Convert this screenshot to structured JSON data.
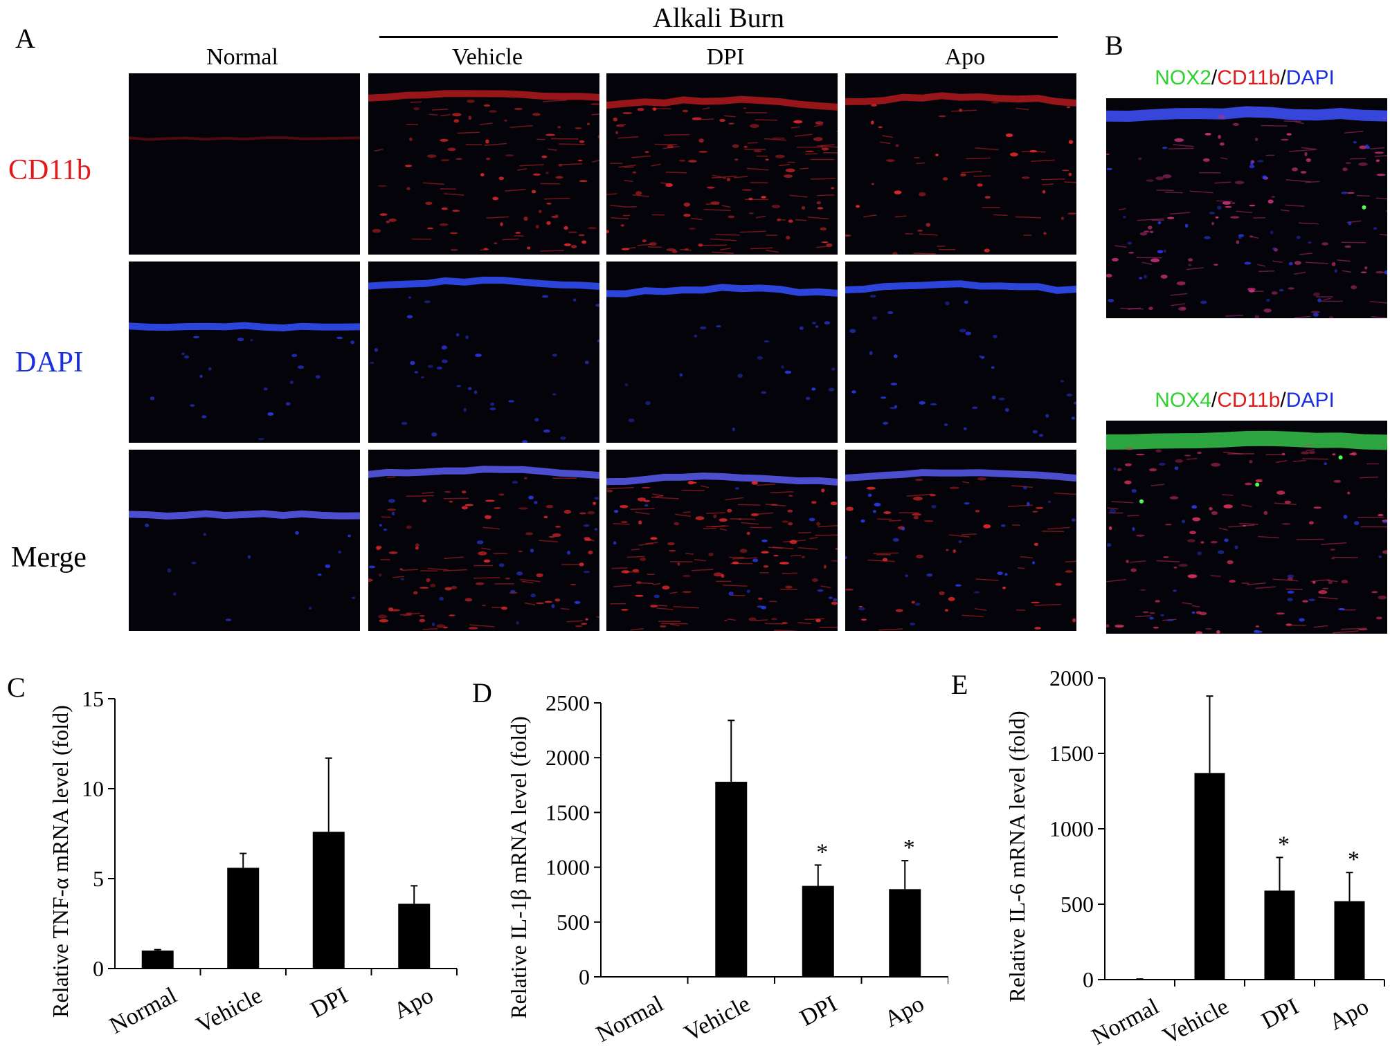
{
  "panels": {
    "A": "A",
    "B": "B",
    "C": "C",
    "D": "D",
    "E": "E"
  },
  "panelA": {
    "group_label": "Alkali Burn",
    "columns": [
      "Normal",
      "Vehicle",
      "DPI",
      "Apo"
    ],
    "rows": [
      {
        "label": "CD11b",
        "color": "#e01a1a"
      },
      {
        "label": "DAPI",
        "color": "#1a2fe0"
      },
      {
        "label": "Merge",
        "color": "#000000"
      }
    ]
  },
  "panelB": {
    "images": [
      {
        "parts": [
          {
            "text": "NOX2",
            "color": "#2fd12f"
          },
          {
            "text": "/",
            "color": "#000000"
          },
          {
            "text": "CD11b",
            "color": "#e01a1a"
          },
          {
            "text": "/",
            "color": "#000000"
          },
          {
            "text": "DAPI",
            "color": "#1a2fe0"
          }
        ]
      },
      {
        "parts": [
          {
            "text": "NOX4",
            "color": "#2fd12f"
          },
          {
            "text": "/",
            "color": "#000000"
          },
          {
            "text": "CD11b",
            "color": "#e01a1a"
          },
          {
            "text": "/",
            "color": "#000000"
          },
          {
            "text": "DAPI",
            "color": "#1a2fe0"
          }
        ]
      }
    ]
  },
  "chart_data": [
    {
      "type": "bar",
      "panel": "C",
      "categories": [
        "Normal",
        "Vehicle",
        "DPI",
        "Apo"
      ],
      "values": [
        1.0,
        5.6,
        7.6,
        3.6
      ],
      "errors": [
        0.05,
        0.8,
        4.1,
        1.0
      ],
      "significance": [
        "",
        "",
        "",
        ""
      ],
      "ylabel": "Relative TNF-α mRNA level (fold)",
      "ylim": [
        0,
        15
      ],
      "yticks": [
        0,
        5,
        10,
        15
      ],
      "bar_color": "#000000"
    },
    {
      "type": "bar",
      "panel": "D",
      "categories": [
        "Normal",
        "Vehicle",
        "DPI",
        "Apo"
      ],
      "values": [
        1,
        1780,
        830,
        800
      ],
      "errors": [
        0,
        560,
        190,
        260
      ],
      "significance": [
        "",
        "",
        "*",
        "*"
      ],
      "ylabel": "Relative IL-1β mRNA level (fold)",
      "ylim": [
        0,
        2500
      ],
      "yticks": [
        0,
        500,
        1000,
        1500,
        2000,
        2500
      ],
      "bar_color": "#000000"
    },
    {
      "type": "bar",
      "panel": "E",
      "categories": [
        "Normal",
        "Vehicle",
        "DPI",
        "Apo"
      ],
      "values": [
        1,
        1370,
        590,
        520
      ],
      "errors": [
        3,
        510,
        220,
        190
      ],
      "significance": [
        "",
        "",
        "*",
        "*"
      ],
      "ylabel": "Relative IL-6 mRNA level (fold)",
      "ylim": [
        0,
        2000
      ],
      "yticks": [
        0,
        500,
        1000,
        1500,
        2000
      ],
      "bar_color": "#000000"
    }
  ]
}
